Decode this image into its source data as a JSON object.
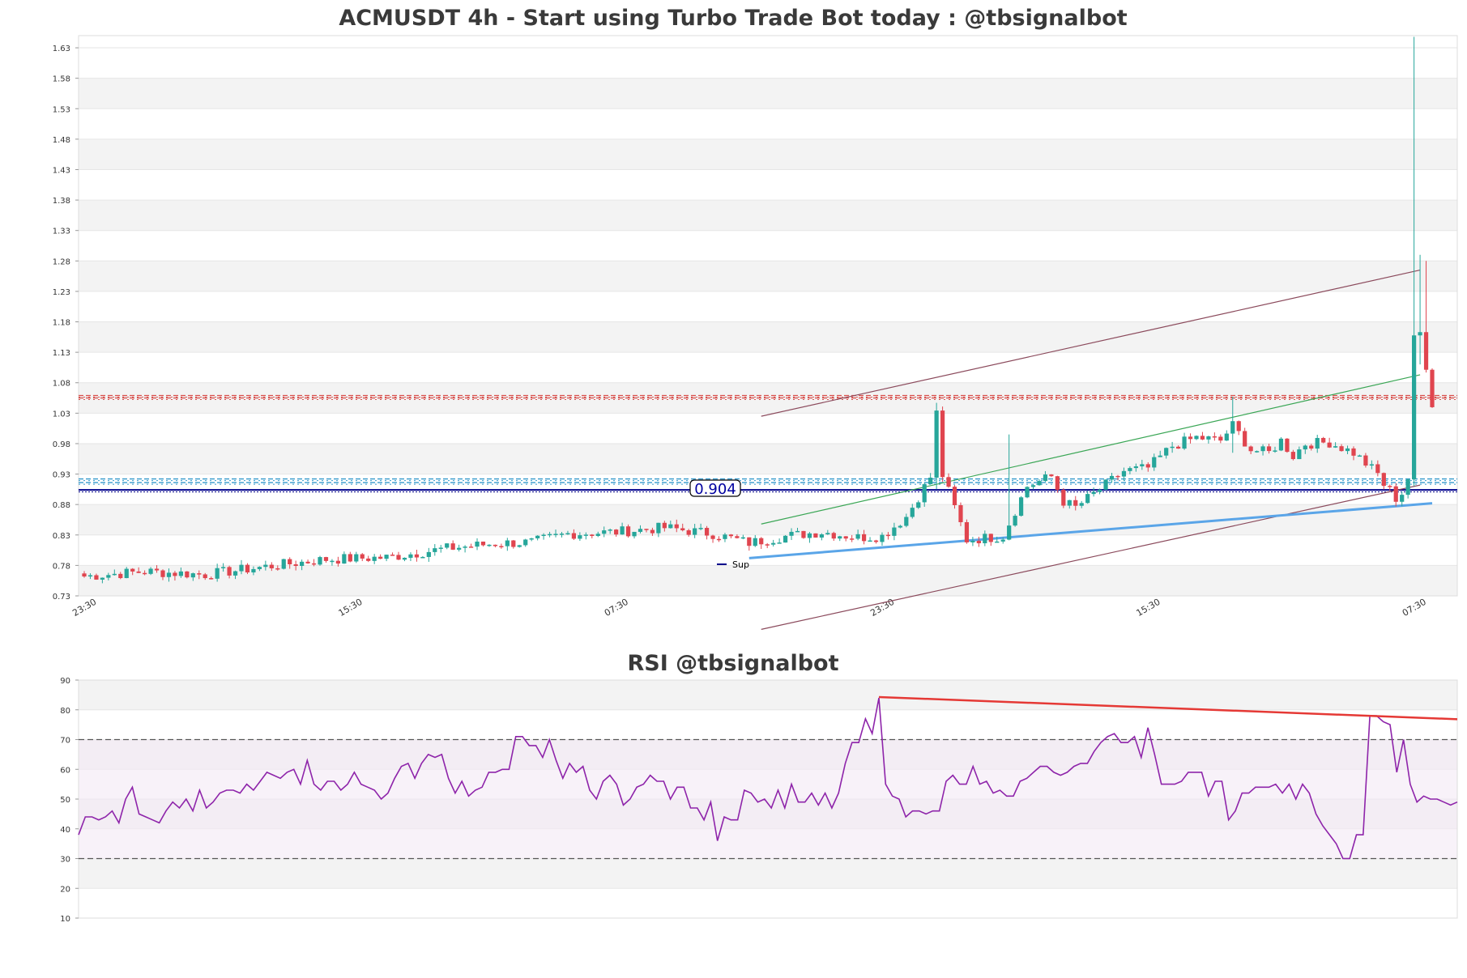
{
  "chart_data": [
    {
      "type": "candlestick",
      "title": "ACMUSDT 4h - Start using Turbo Trade Bot today : @tbsignalbot",
      "ylim": [
        0.73,
        1.65
      ],
      "yticks": [
        "1.63",
        "1.58",
        "1.53",
        "1.48",
        "1.43",
        "1.38",
        "1.33",
        "1.28",
        "1.23",
        "1.18",
        "1.13",
        "1.08",
        "1.03",
        "0.98",
        "0.93",
        "0.88",
        "0.83",
        "0.78",
        "0.73"
      ],
      "xticks": [
        {
          "label": "23:30",
          "index": 0
        },
        {
          "label": "15:30",
          "index": 44
        },
        {
          "label": "07:30",
          "index": 88
        },
        {
          "label": "23:30",
          "index": 132
        },
        {
          "label": "15:30",
          "index": 176
        },
        {
          "label": "07:30",
          "index": 220
        }
      ],
      "candle_count": 224,
      "colors": {
        "up": "#26a69a",
        "down": "#e0454f",
        "grid_band": "#f3f3f3"
      },
      "levels": [
        {
          "value": 1.059,
          "style": "dashed-double",
          "color": "#d9534f"
        },
        {
          "value": 1.055,
          "style": "dashed-double",
          "color": "#d9534f"
        },
        {
          "value": 0.922,
          "style": "dashed-double",
          "color": "#3399cc"
        },
        {
          "value": 0.916,
          "style": "dashed-double",
          "color": "#3399cc"
        },
        {
          "value": 0.904,
          "style": "solid",
          "color": "#00008b"
        }
      ],
      "level_label": "0.904",
      "legend": {
        "label": "Sup",
        "color": "#00008b",
        "position": "lower-left"
      },
      "trendlines": [
        {
          "color": "#8b4a5c",
          "from": [
            112,
            1.025
          ],
          "to": [
            221,
            1.265
          ]
        },
        {
          "color": "#8b4a5c",
          "from": [
            112,
            0.675
          ],
          "to": [
            221,
            0.912
          ]
        },
        {
          "color": "#3aa655",
          "from": [
            112,
            0.848
          ],
          "to": [
            221,
            1.093
          ]
        },
        {
          "color": "#5aa5e8",
          "from": [
            110,
            0.792
          ],
          "to": [
            223,
            0.882
          ]
        }
      ],
      "ohlc_anchors": [
        [
          0,
          0.762
        ],
        [
          10,
          0.77
        ],
        [
          20,
          0.765
        ],
        [
          30,
          0.778
        ],
        [
          40,
          0.79
        ],
        [
          50,
          0.793
        ],
        [
          60,
          0.808
        ],
        [
          68,
          0.816
        ],
        [
          74,
          0.818
        ],
        [
          80,
          0.832
        ],
        [
          88,
          0.835
        ],
        [
          96,
          0.842
        ],
        [
          104,
          0.832
        ],
        [
          110,
          0.817
        ],
        [
          116,
          0.828
        ],
        [
          122,
          0.835
        ],
        [
          128,
          0.826
        ],
        [
          132,
          0.828
        ],
        [
          136,
          0.86
        ],
        [
          140,
          0.925
        ],
        [
          141,
          1.03
        ],
        [
          142,
          0.928
        ],
        [
          144,
          0.875
        ],
        [
          146,
          0.822
        ],
        [
          150,
          0.826
        ],
        [
          152,
          0.828
        ],
        [
          154,
          0.87
        ],
        [
          156,
          0.91
        ],
        [
          160,
          0.926
        ],
        [
          162,
          0.885
        ],
        [
          164,
          0.875
        ],
        [
          168,
          0.905
        ],
        [
          172,
          0.935
        ],
        [
          176,
          0.94
        ],
        [
          180,
          0.976
        ],
        [
          184,
          0.99
        ],
        [
          188,
          0.985
        ],
        [
          190,
          1.01
        ],
        [
          193,
          0.97
        ],
        [
          196,
          0.965
        ],
        [
          198,
          0.985
        ],
        [
          200,
          0.96
        ],
        [
          202,
          0.98
        ],
        [
          206,
          0.982
        ],
        [
          210,
          0.965
        ],
        [
          214,
          0.93
        ],
        [
          216,
          0.895
        ],
        [
          218,
          0.903
        ],
        [
          219,
          0.925
        ],
        [
          220,
          1.14
        ],
        [
          221,
          1.16
        ],
        [
          222,
          1.12
        ],
        [
          223,
          1.055
        ],
        [
          224,
          1.175
        ],
        [
          225,
          1.06
        ],
        [
          226,
          1.012
        ],
        [
          227,
          1.03
        ],
        [
          228,
          1.02
        ],
        [
          229,
          1.005
        ]
      ],
      "spikes": [
        {
          "index": 220,
          "high": 1.648,
          "low": 0.91
        },
        {
          "index": 221,
          "high": 1.29,
          "low": 1.11
        },
        {
          "index": 141,
          "high": 1.047,
          "low": 0.905
        },
        {
          "index": 153,
          "high": 0.995,
          "low": 0.83
        },
        {
          "index": 190,
          "high": 1.057,
          "low": 0.965
        },
        {
          "index": 222,
          "high": 1.28,
          "low": 1.1
        },
        {
          "index": 225,
          "high": 1.21,
          "low": 1.05
        }
      ]
    },
    {
      "type": "line",
      "title": "RSI @tbsignalbot",
      "ylim": [
        10,
        90
      ],
      "yticks": [
        "90",
        "80",
        "70",
        "60",
        "50",
        "40",
        "30",
        "20",
        "10"
      ],
      "reference_lines": [
        70,
        30
      ],
      "series": [
        {
          "color": "#8e24aa",
          "values": [
            38,
            44,
            44,
            43,
            44,
            46,
            42,
            50,
            54,
            45,
            44,
            43,
            42,
            46,
            49,
            47,
            50,
            46,
            53,
            47,
            49,
            52,
            53,
            53,
            52,
            55,
            53,
            56,
            59,
            58,
            57,
            59,
            60,
            55,
            63,
            55,
            53,
            56,
            56,
            53,
            55,
            59,
            55,
            54,
            53,
            50,
            52,
            57,
            61,
            62,
            57,
            62,
            65,
            64,
            65,
            57,
            52,
            56,
            51,
            53,
            54,
            59,
            59,
            60,
            60,
            71,
            71,
            68,
            68,
            64,
            70,
            63,
            57,
            62,
            59,
            61,
            53,
            50,
            56,
            58,
            55,
            48,
            50,
            54,
            55,
            58,
            56,
            56,
            50,
            54,
            54,
            47,
            47,
            43,
            49,
            36,
            44,
            43,
            43,
            53,
            52,
            49,
            50,
            47,
            53,
            47,
            55,
            49,
            49,
            52,
            48,
            52,
            47,
            52,
            62,
            69,
            69,
            77,
            72,
            84,
            55,
            51,
            50,
            44,
            46,
            46,
            45,
            46,
            46,
            56,
            58,
            55,
            55,
            61,
            55,
            56,
            52,
            53,
            51,
            51,
            56,
            57,
            59,
            61,
            61,
            59,
            58,
            59,
            61,
            62,
            62,
            66,
            69,
            71,
            72,
            69,
            69,
            71,
            64,
            74,
            65,
            55,
            55,
            55,
            56,
            59,
            59,
            59,
            51,
            56,
            56,
            43,
            46,
            52,
            52,
            54,
            54,
            54,
            55,
            52,
            55,
            50,
            55,
            52,
            45,
            41,
            38,
            35,
            30,
            30,
            38,
            38,
            78,
            78,
            76,
            75,
            59,
            70,
            55,
            49,
            51,
            50,
            50,
            49,
            48,
            49
          ]
        }
      ],
      "trendline": {
        "color": "#e53935",
        "from": [
          119,
          84.3
        ],
        "to": [
          209,
          76.5
        ]
      }
    }
  ]
}
